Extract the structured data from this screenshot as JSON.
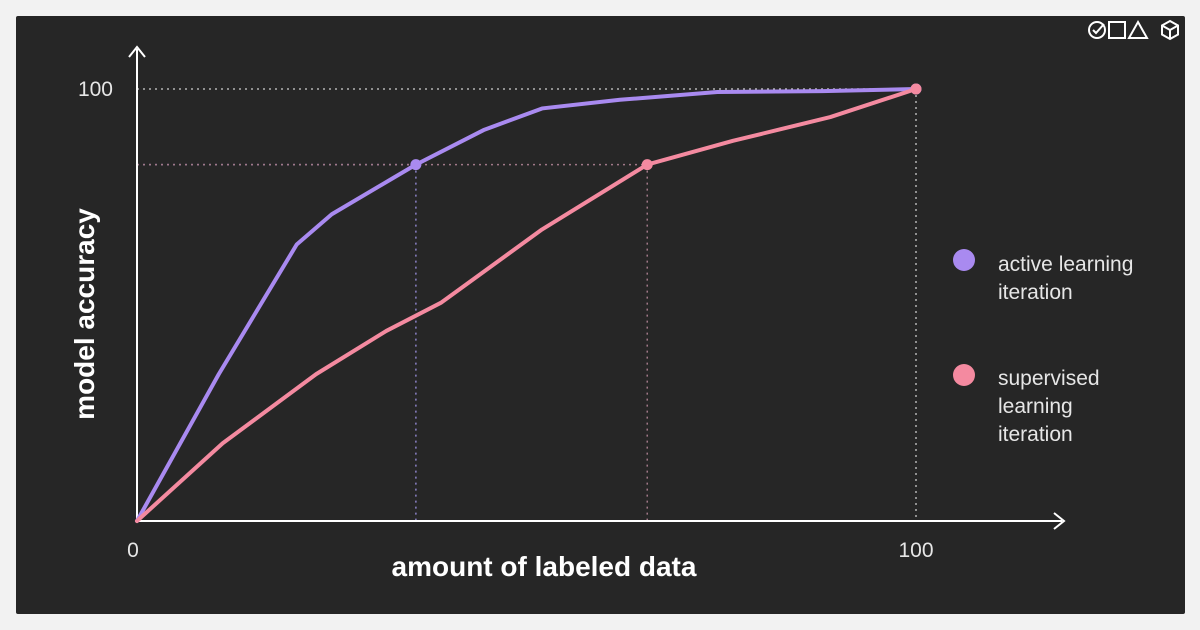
{
  "brand_icons": [
    "check-circle-icon",
    "square-icon",
    "triangle-icon",
    "cube-icon"
  ],
  "chart_data": {
    "type": "line",
    "xlabel": "amount of labeled data",
    "ylabel": "model accuracy",
    "xlim": [
      0,
      120
    ],
    "ylim": [
      0,
      100
    ],
    "x_ticks": [
      "0",
      "100"
    ],
    "y_ticks": [
      "100"
    ],
    "grid": false,
    "legend_placement": "right",
    "series": [
      {
        "name": "active learning iteration",
        "color": "#a98af0",
        "x": [
          0,
          10.5,
          20.5,
          25,
          32.5,
          35.8,
          44.5,
          52,
          62,
          74.5,
          88,
          100
        ],
        "y": [
          0,
          34,
          64,
          71,
          79,
          82.5,
          90.5,
          95.5,
          97.5,
          99.3,
          99.5,
          100
        ],
        "marker_index": 5
      },
      {
        "name": "supervised learning iteration",
        "color": "#f48aa0",
        "x": [
          0,
          11,
          23,
          32,
          39,
          52,
          65.5,
          76.5,
          89,
          100
        ],
        "y": [
          0,
          18,
          34,
          44,
          50.5,
          67.5,
          82.5,
          88,
          93.5,
          100
        ],
        "marker_index": 6
      }
    ],
    "guides": [
      {
        "color": "#8c82c8",
        "x": 35.8,
        "y": 82.5
      },
      {
        "color": "#a07888",
        "x": 65.5,
        "y": 82.5
      },
      {
        "color": "#b4b4b4",
        "x": 100,
        "y": 100
      }
    ]
  }
}
